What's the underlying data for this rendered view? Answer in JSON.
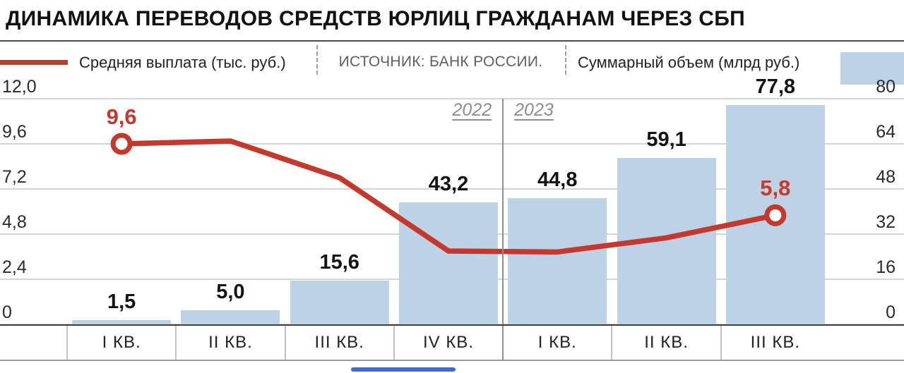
{
  "title": "ДИНАМИКА ПЕРЕВОДОВ СРЕДСТВ ЮРЛИЦ ГРАЖДАНАМ ЧЕРЕЗ СБП",
  "legend": {
    "line_label": "Средняя выплата (тыс. руб.)",
    "source": "ИСТОЧНИК: БАНК РОССИИ.",
    "bars_label": "Суммарный объем (млрд руб.)"
  },
  "colors": {
    "line": "#c5382e",
    "bar": "#bdd2e4",
    "accent_bottom": "#3f6ad1"
  },
  "chart_data": {
    "type": "combo-bar-line",
    "categories": [
      "I КВ.",
      "II КВ.",
      "III КВ.",
      "IV КВ.",
      "I КВ.",
      "II КВ.",
      "III КВ."
    ],
    "years": {
      "left": "2022",
      "right": "2023",
      "divider_after_index": 3
    },
    "left_axis": {
      "ticks": [
        "12,0",
        "9,6",
        "7,2",
        "4,8",
        "2,4",
        "0"
      ],
      "min": 0,
      "max": 12
    },
    "right_axis": {
      "ticks": [
        "80",
        "64",
        "48",
        "32",
        "16",
        "0"
      ],
      "min": 0,
      "max": 80
    },
    "grid": "horizontal",
    "series": [
      {
        "name": "Суммарный объем (млрд руб.)",
        "type": "bar",
        "axis": "right",
        "values": [
          1.5,
          5.0,
          15.6,
          43.2,
          44.8,
          59.1,
          77.8
        ],
        "value_labels": [
          "1,5",
          "5,0",
          "15,6",
          "43,2",
          "44,8",
          "59,1",
          "77,8"
        ]
      },
      {
        "name": "Средняя выплата (тыс. руб.)",
        "type": "line",
        "axis": "left",
        "values": [
          9.6,
          9.75,
          7.8,
          3.9,
          3.85,
          4.6,
          5.8
        ],
        "point_labels": [
          "9,6",
          "",
          "",
          "",
          "",
          "",
          "5,8"
        ],
        "marker_indices": [
          0,
          6
        ]
      }
    ]
  }
}
